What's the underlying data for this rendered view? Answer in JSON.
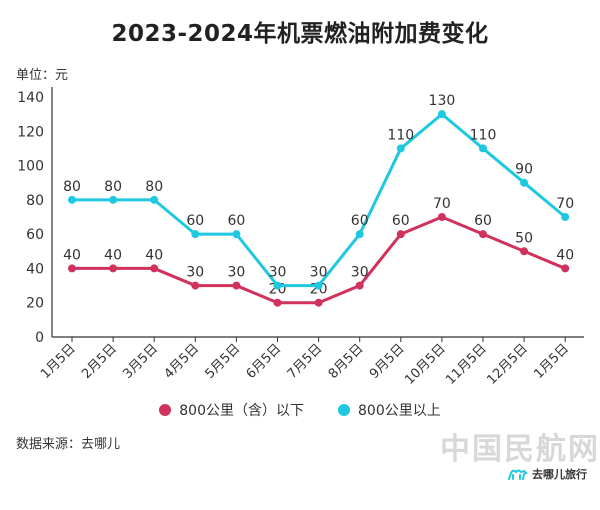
{
  "title": "2023-2024年机票燃油附加费变化",
  "unit_label": "单位：元",
  "source": "数据来源：去哪儿",
  "watermark": "中国民航网",
  "logo_text": "去哪儿旅行",
  "colors": {
    "series1": "#d0325c",
    "series2": "#1ec8e0",
    "axis": "#333333"
  },
  "chart_data": {
    "type": "line",
    "categories": [
      "1月5日",
      "2月5日",
      "3月5日",
      "4月5日",
      "5月5日",
      "6月5日",
      "7月5日",
      "8月5日",
      "9月5日",
      "10月5日",
      "11月5日",
      "12月5日",
      "1月5日"
    ],
    "ylim": [
      0,
      140
    ],
    "yticks": [
      0,
      20,
      40,
      60,
      80,
      100,
      120,
      140
    ],
    "grid": false,
    "legend_position": "bottom",
    "series": [
      {
        "name": "800公里（含）以下",
        "values": [
          40,
          40,
          40,
          30,
          30,
          20,
          20,
          30,
          60,
          70,
          60,
          50,
          40
        ]
      },
      {
        "name": "800公里以上",
        "values": [
          80,
          80,
          80,
          60,
          60,
          30,
          30,
          60,
          110,
          130,
          110,
          90,
          70
        ]
      }
    ]
  }
}
